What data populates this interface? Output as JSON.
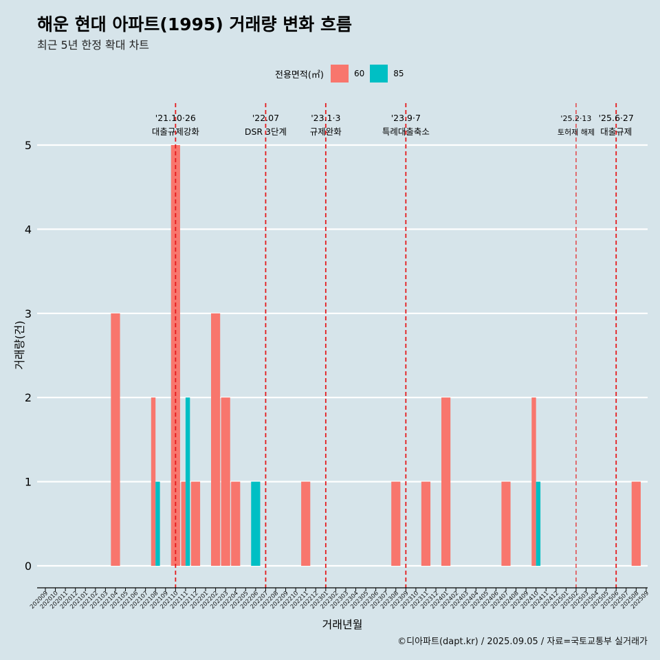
{
  "title": "해운 현대 아파트(1995) 거래량 변화 흐름",
  "subtitle": "최근 5년 한정 확대 차트",
  "caption": "©디아파트(dapt.kr) / 2025.09.05 / 자료=국토교통부 실거래가",
  "legend": {
    "title": "전용면적(㎡)",
    "items": [
      {
        "label": "60",
        "color": "#F8766D"
      },
      {
        "label": "85",
        "color": "#00BFC4"
      }
    ]
  },
  "chart_data": {
    "type": "bar",
    "xlabel": "거래년월",
    "ylabel": "거래량(건)",
    "ylim": [
      0,
      5
    ],
    "yticks": [
      0,
      1,
      2,
      3,
      4,
      5
    ],
    "grid": true,
    "legend_position": "top",
    "categories": [
      "202009",
      "202010",
      "202011",
      "202012",
      "202101",
      "202102",
      "202103",
      "202104",
      "202105",
      "202106",
      "202107",
      "202108",
      "202109",
      "202110",
      "202111",
      "202112",
      "202201",
      "202202",
      "202203",
      "202204",
      "202205",
      "202206",
      "202207",
      "202208",
      "202209",
      "202210",
      "202211",
      "202212",
      "202301",
      "202302",
      "202303",
      "202304",
      "202305",
      "202306",
      "202307",
      "202308",
      "202309",
      "202310",
      "202311",
      "202312",
      "202401",
      "202402",
      "202403",
      "202404",
      "202405",
      "202406",
      "202407",
      "202408",
      "202409",
      "202410",
      "202411",
      "202412",
      "202501",
      "202502",
      "202503",
      "202504",
      "202505",
      "202506",
      "202507",
      "202508",
      "202509"
    ],
    "series": [
      {
        "name": "60",
        "color": "#F8766D",
        "values": {
          "202104": 3,
          "202108": 2,
          "202110": 5,
          "202111": 1,
          "202112": 1,
          "202202": 3,
          "202203": 2,
          "202204": 1,
          "202211": 1,
          "202308": 1,
          "202311": 1,
          "202401": 2,
          "202407": 1,
          "202410": 2,
          "202508": 1
        }
      },
      {
        "name": "85",
        "color": "#00BFC4",
        "values": {
          "202108": 1,
          "202111": 2,
          "202206": 1,
          "202410": 1
        }
      }
    ],
    "annotations": [
      {
        "month": "202110",
        "date": "'21.10·26",
        "label": "대출규제강화",
        "style": "bold"
      },
      {
        "month": "202207",
        "date": "'22.07",
        "label": "DSR 3단계",
        "style": "bold"
      },
      {
        "month": "202301",
        "date": "'23.1·3",
        "label": "규제완화",
        "style": "bold"
      },
      {
        "month": "202309",
        "date": "'23.9·7",
        "label": "특례대출축소",
        "style": "bold"
      },
      {
        "month": "202502",
        "date": "'25.2·13",
        "label": "토허제 해제",
        "style": "thin"
      },
      {
        "month": "202506",
        "date": "'25.6·27",
        "label": "대출규제",
        "style": "bold"
      }
    ]
  }
}
